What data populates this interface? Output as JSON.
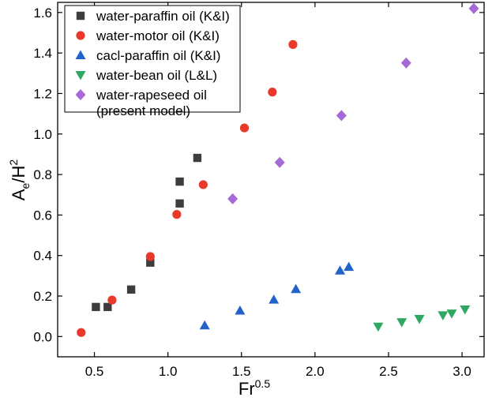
{
  "chart_data": {
    "type": "scatter",
    "xlabel": {
      "base": "Fr",
      "sup": "0.5"
    },
    "ylabel": {
      "base": "A",
      "sub": "e",
      "mid": "/H",
      "sup": "2"
    },
    "xlim": [
      0.25,
      3.15
    ],
    "ylim": [
      -0.1,
      1.65
    ],
    "x_ticks": [
      {
        "value": 0.5,
        "label": "0.5"
      },
      {
        "value": 1.0,
        "label": "1.0"
      },
      {
        "value": 1.5,
        "label": "1.5"
      },
      {
        "value": 2.0,
        "label": "2.0"
      },
      {
        "value": 2.5,
        "label": "2.5"
      },
      {
        "value": 3.0,
        "label": "3.0"
      }
    ],
    "y_ticks": [
      {
        "value": 0.0,
        "label": "0.0"
      },
      {
        "value": 0.2,
        "label": "0.2"
      },
      {
        "value": 0.4,
        "label": "0.4"
      },
      {
        "value": 0.6,
        "label": "0.6"
      },
      {
        "value": 0.8,
        "label": "0.8"
      },
      {
        "value": 1.0,
        "label": "1.0"
      },
      {
        "value": 1.2,
        "label": "1.2"
      },
      {
        "value": 1.4,
        "label": "1.4"
      },
      {
        "value": 1.6,
        "label": "1.6"
      }
    ],
    "grid": false,
    "legend_position": "top-left",
    "series": [
      {
        "name": "water-paraffin oil (K&I)",
        "marker": "square",
        "color": "#3d3d3d",
        "points": [
          [
            0.51,
            0.146
          ],
          [
            0.59,
            0.146
          ],
          [
            0.75,
            0.232
          ],
          [
            0.88,
            0.365
          ],
          [
            1.08,
            0.657
          ],
          [
            1.08,
            0.765
          ],
          [
            1.2,
            0.882
          ]
        ]
      },
      {
        "name": "water-motor oil (K&I)",
        "marker": "circle",
        "color": "#e8392b",
        "points": [
          [
            0.41,
            0.02
          ],
          [
            0.62,
            0.18
          ],
          [
            0.88,
            0.395
          ],
          [
            1.06,
            0.603
          ],
          [
            1.24,
            0.75
          ],
          [
            1.52,
            1.03
          ],
          [
            1.71,
            1.207
          ],
          [
            1.85,
            1.442
          ]
        ]
      },
      {
        "name": "cacl-paraffin oil (K&I)",
        "marker": "triangle-up",
        "color": "#2263c9",
        "points": [
          [
            1.25,
            0.055
          ],
          [
            1.49,
            0.128
          ],
          [
            1.72,
            0.182
          ],
          [
            1.87,
            0.234
          ],
          [
            2.17,
            0.326
          ],
          [
            2.23,
            0.344
          ]
        ]
      },
      {
        "name": "water-bean oil (L&L)",
        "marker": "triangle-down",
        "color": "#2fa862",
        "points": [
          [
            2.43,
            0.049
          ],
          [
            2.59,
            0.071
          ],
          [
            2.71,
            0.087
          ],
          [
            2.87,
            0.105
          ],
          [
            2.93,
            0.114
          ],
          [
            3.02,
            0.134
          ]
        ]
      },
      {
        "name": "water-rapeseed oil",
        "name_line2": "(present model)",
        "marker": "diamond",
        "color": "#a56ad6",
        "points": [
          [
            1.44,
            0.68
          ],
          [
            1.76,
            0.86
          ],
          [
            2.18,
            1.091
          ],
          [
            2.62,
            1.351
          ],
          [
            3.08,
            1.62
          ]
        ]
      }
    ]
  }
}
